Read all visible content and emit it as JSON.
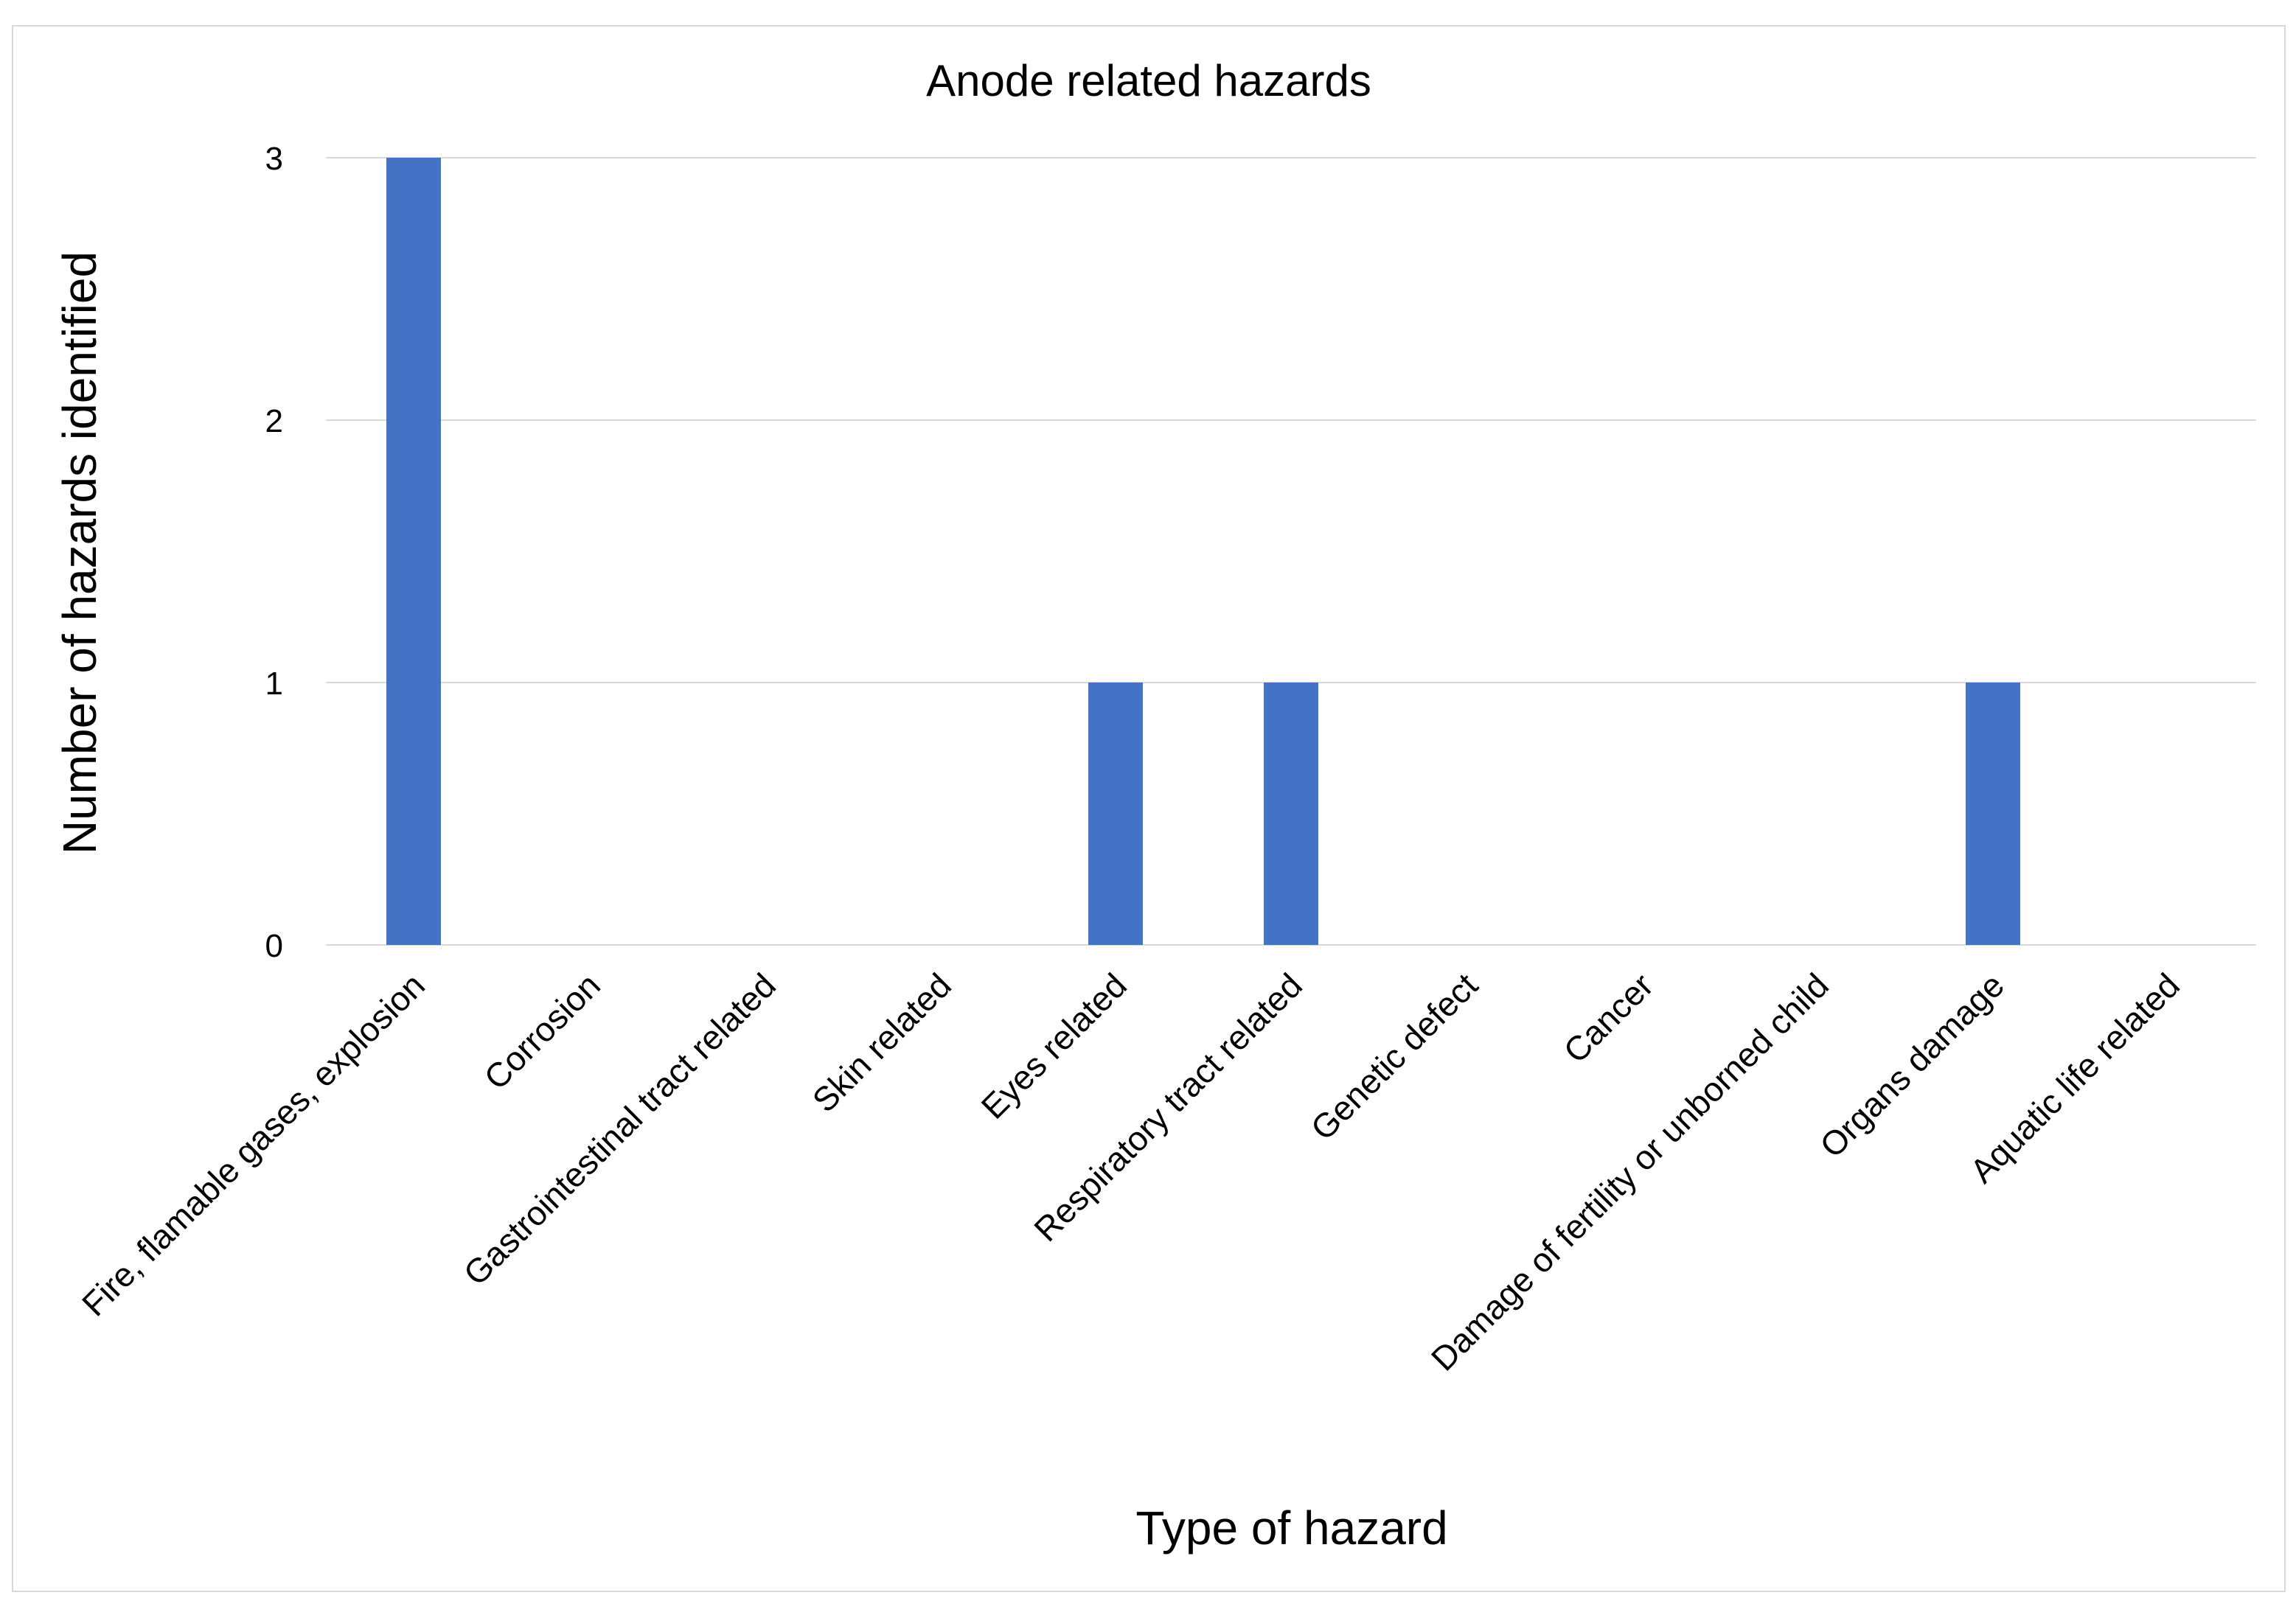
{
  "chart_data": {
    "type": "bar",
    "title": "Anode related hazards",
    "xlabel": "Type of hazard",
    "ylabel": "Number of hazards identified",
    "categories": [
      "Fire, flamable gases, explosion",
      "Corrosion",
      "Gastrointestinal tract related",
      "Skin related",
      "Eyes related",
      "Respiratory tract related",
      "Genetic defect",
      "Cancer",
      "Damage of fertility or unborned child",
      "Organs damage",
      "Aquatic life related"
    ],
    "values": [
      3,
      0,
      0,
      0,
      1,
      1,
      0,
      0,
      0,
      1,
      0
    ],
    "ylim": [
      0,
      3
    ],
    "yticks": [
      "0",
      "1",
      "2",
      "3"
    ],
    "grid": true,
    "legend": "none",
    "colors": {
      "bar": "#4472c4",
      "grid": "#d9d9d9",
      "frame": "#d9d9d9"
    }
  }
}
